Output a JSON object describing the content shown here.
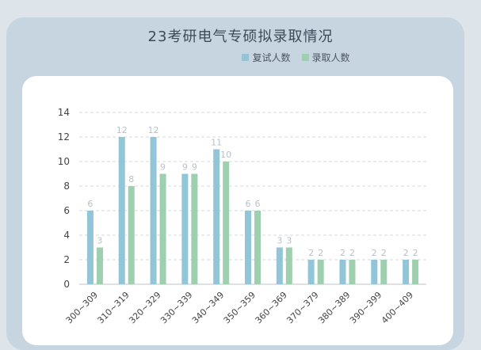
{
  "chart_data": {
    "type": "bar",
    "title": "23考研电气专硕拟录取情况",
    "categories": [
      "300~309",
      "310~319",
      "320~329",
      "330~339",
      "340~349",
      "350~359",
      "360~369",
      "370~379",
      "380~389",
      "390~399",
      "400~409"
    ],
    "series": [
      {
        "name": "复试人数",
        "color": "#92c5d8",
        "values": [
          6,
          12,
          12,
          9,
          11,
          6,
          3,
          2,
          2,
          2,
          2
        ]
      },
      {
        "name": "录取人数",
        "color": "#9ecfae",
        "values": [
          3,
          8,
          9,
          9,
          10,
          6,
          3,
          2,
          2,
          2,
          2
        ]
      }
    ],
    "yticks": [
      0,
      2,
      4,
      6,
      8,
      10,
      12,
      14
    ],
    "ylim": [
      0,
      14
    ],
    "grid": true,
    "legend_position": "top-right"
  }
}
